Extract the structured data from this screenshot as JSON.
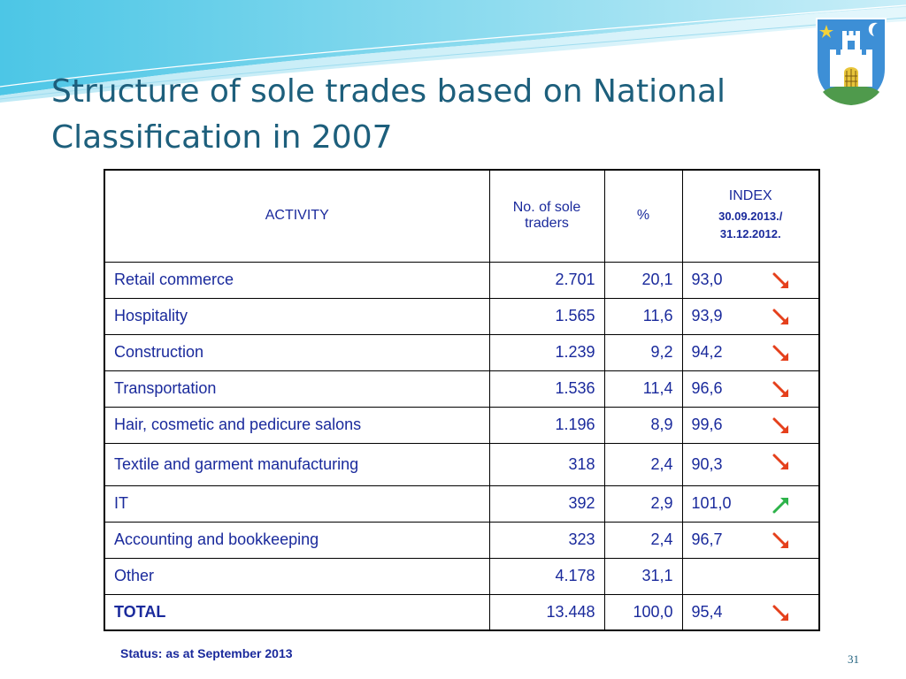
{
  "slide": {
    "title": "Structure of sole trades based on National Classification in 2007",
    "status_note": "Status: as at September 2013",
    "page_number": "31"
  },
  "table": {
    "headers": {
      "activity": "ACTIVITY",
      "traders": "No. of sole traders",
      "percent": "%",
      "index_title": "INDEX",
      "index_period": "30.09.2013./ 31.12.2012."
    },
    "rows": [
      {
        "activity": "Retail commerce",
        "traders": "2.701",
        "percent": "20,1",
        "index": "93,0",
        "trend": "down"
      },
      {
        "activity": "Hospitality",
        "traders": "1.565",
        "percent": "11,6",
        "index": "93,9",
        "trend": "down"
      },
      {
        "activity": "Construction",
        "traders": "1.239",
        "percent": "9,2",
        "index": "94,2",
        "trend": "down"
      },
      {
        "activity": "Transportation",
        "traders": "1.536",
        "percent": "11,4",
        "index": "96,6",
        "trend": "down"
      },
      {
        "activity": "Hair, cosmetic and pedicure salons",
        "traders": "1.196",
        "percent": "8,9",
        "index": "99,6",
        "trend": "down"
      },
      {
        "activity": "Textile and garment manufacturing",
        "traders": "318",
        "percent": "2,4",
        "index": "90,3",
        "trend": "down"
      },
      {
        "activity": "IT",
        "traders": "392",
        "percent": "2,9",
        "index": "101,0",
        "trend": "up"
      },
      {
        "activity": "Accounting and bookkeeping",
        "traders": "323",
        "percent": "2,4",
        "index": "96,7",
        "trend": "down"
      },
      {
        "activity": "Other",
        "traders": "4.178",
        "percent": "31,1",
        "index": "",
        "trend": "none"
      },
      {
        "activity": "TOTAL",
        "traders": "13.448",
        "percent": "100,0",
        "index": "95,4",
        "trend": "down"
      }
    ]
  },
  "colors": {
    "title": "#1d5f7c",
    "table_text": "#1a2a9c",
    "arrow_down": "#e5401c",
    "arrow_up": "#2db34a"
  },
  "icons": {
    "trend_down": "arrow-down-right-icon",
    "trend_up": "arrow-up-right-icon",
    "crest": "city-crest-icon"
  }
}
